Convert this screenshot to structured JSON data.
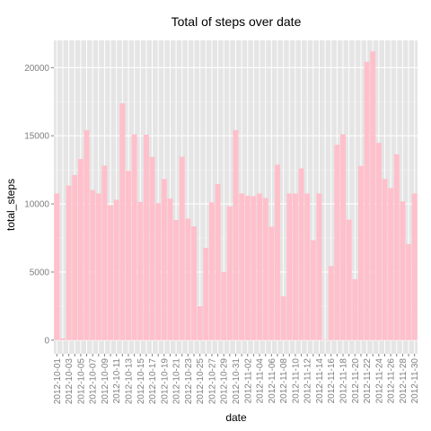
{
  "chart_data": {
    "type": "bar",
    "title": "Total of steps over date",
    "xlabel": "date",
    "ylabel": "total_steps",
    "ylim": [
      -1000,
      22000
    ],
    "yticks": [
      0,
      5000,
      10000,
      15000,
      20000
    ],
    "grid": true,
    "legend": "none",
    "colors": {
      "bar": "#ffc0cb",
      "panel": "#e5e5e5",
      "grid": "#ffffff",
      "tick_text": "#7f7f7f"
    },
    "categories": [
      "2012-10-01",
      "2012-10-02",
      "2012-10-03",
      "2012-10-04",
      "2012-10-05",
      "2012-10-06",
      "2012-10-07",
      "2012-10-08",
      "2012-10-09",
      "2012-10-10",
      "2012-10-11",
      "2012-10-12",
      "2012-10-13",
      "2012-10-14",
      "2012-10-15",
      "2012-10-16",
      "2012-10-17",
      "2012-10-18",
      "2012-10-19",
      "2012-10-20",
      "2012-10-21",
      "2012-10-22",
      "2012-10-23",
      "2012-10-24",
      "2012-10-25",
      "2012-10-26",
      "2012-10-27",
      "2012-10-28",
      "2012-10-29",
      "2012-10-30",
      "2012-10-31",
      "2012-11-01",
      "2012-11-02",
      "2012-11-03",
      "2012-11-04",
      "2012-11-05",
      "2012-11-06",
      "2012-11-07",
      "2012-11-08",
      "2012-11-09",
      "2012-11-10",
      "2012-11-11",
      "2012-11-12",
      "2012-11-13",
      "2012-11-14",
      "2012-11-15",
      "2012-11-16",
      "2012-11-17",
      "2012-11-18",
      "2012-11-19",
      "2012-11-20",
      "2012-11-21",
      "2012-11-22",
      "2012-11-23",
      "2012-11-24",
      "2012-11-25",
      "2012-11-26",
      "2012-11-27",
      "2012-11-28",
      "2012-11-29",
      "2012-11-30"
    ],
    "values": [
      10766,
      126,
      11352,
      12116,
      13294,
      15420,
      11015,
      10766,
      12811,
      9900,
      10304,
      17382,
      12426,
      15098,
      10139,
      15084,
      13452,
      10056,
      11829,
      10395,
      8821,
      13460,
      8918,
      8355,
      2492,
      6778,
      10119,
      11458,
      5018,
      9819,
      15414,
      10766,
      10600,
      10571,
      10766,
      10439,
      8334,
      12883,
      3219,
      10766,
      10766,
      12608,
      10765,
      7336,
      10766,
      41,
      5441,
      14339,
      15110,
      8841,
      4472,
      12787,
      20427,
      21194,
      14478,
      11834,
      11162,
      13646,
      10183,
      7047,
      10766
    ],
    "label_every": 2
  }
}
